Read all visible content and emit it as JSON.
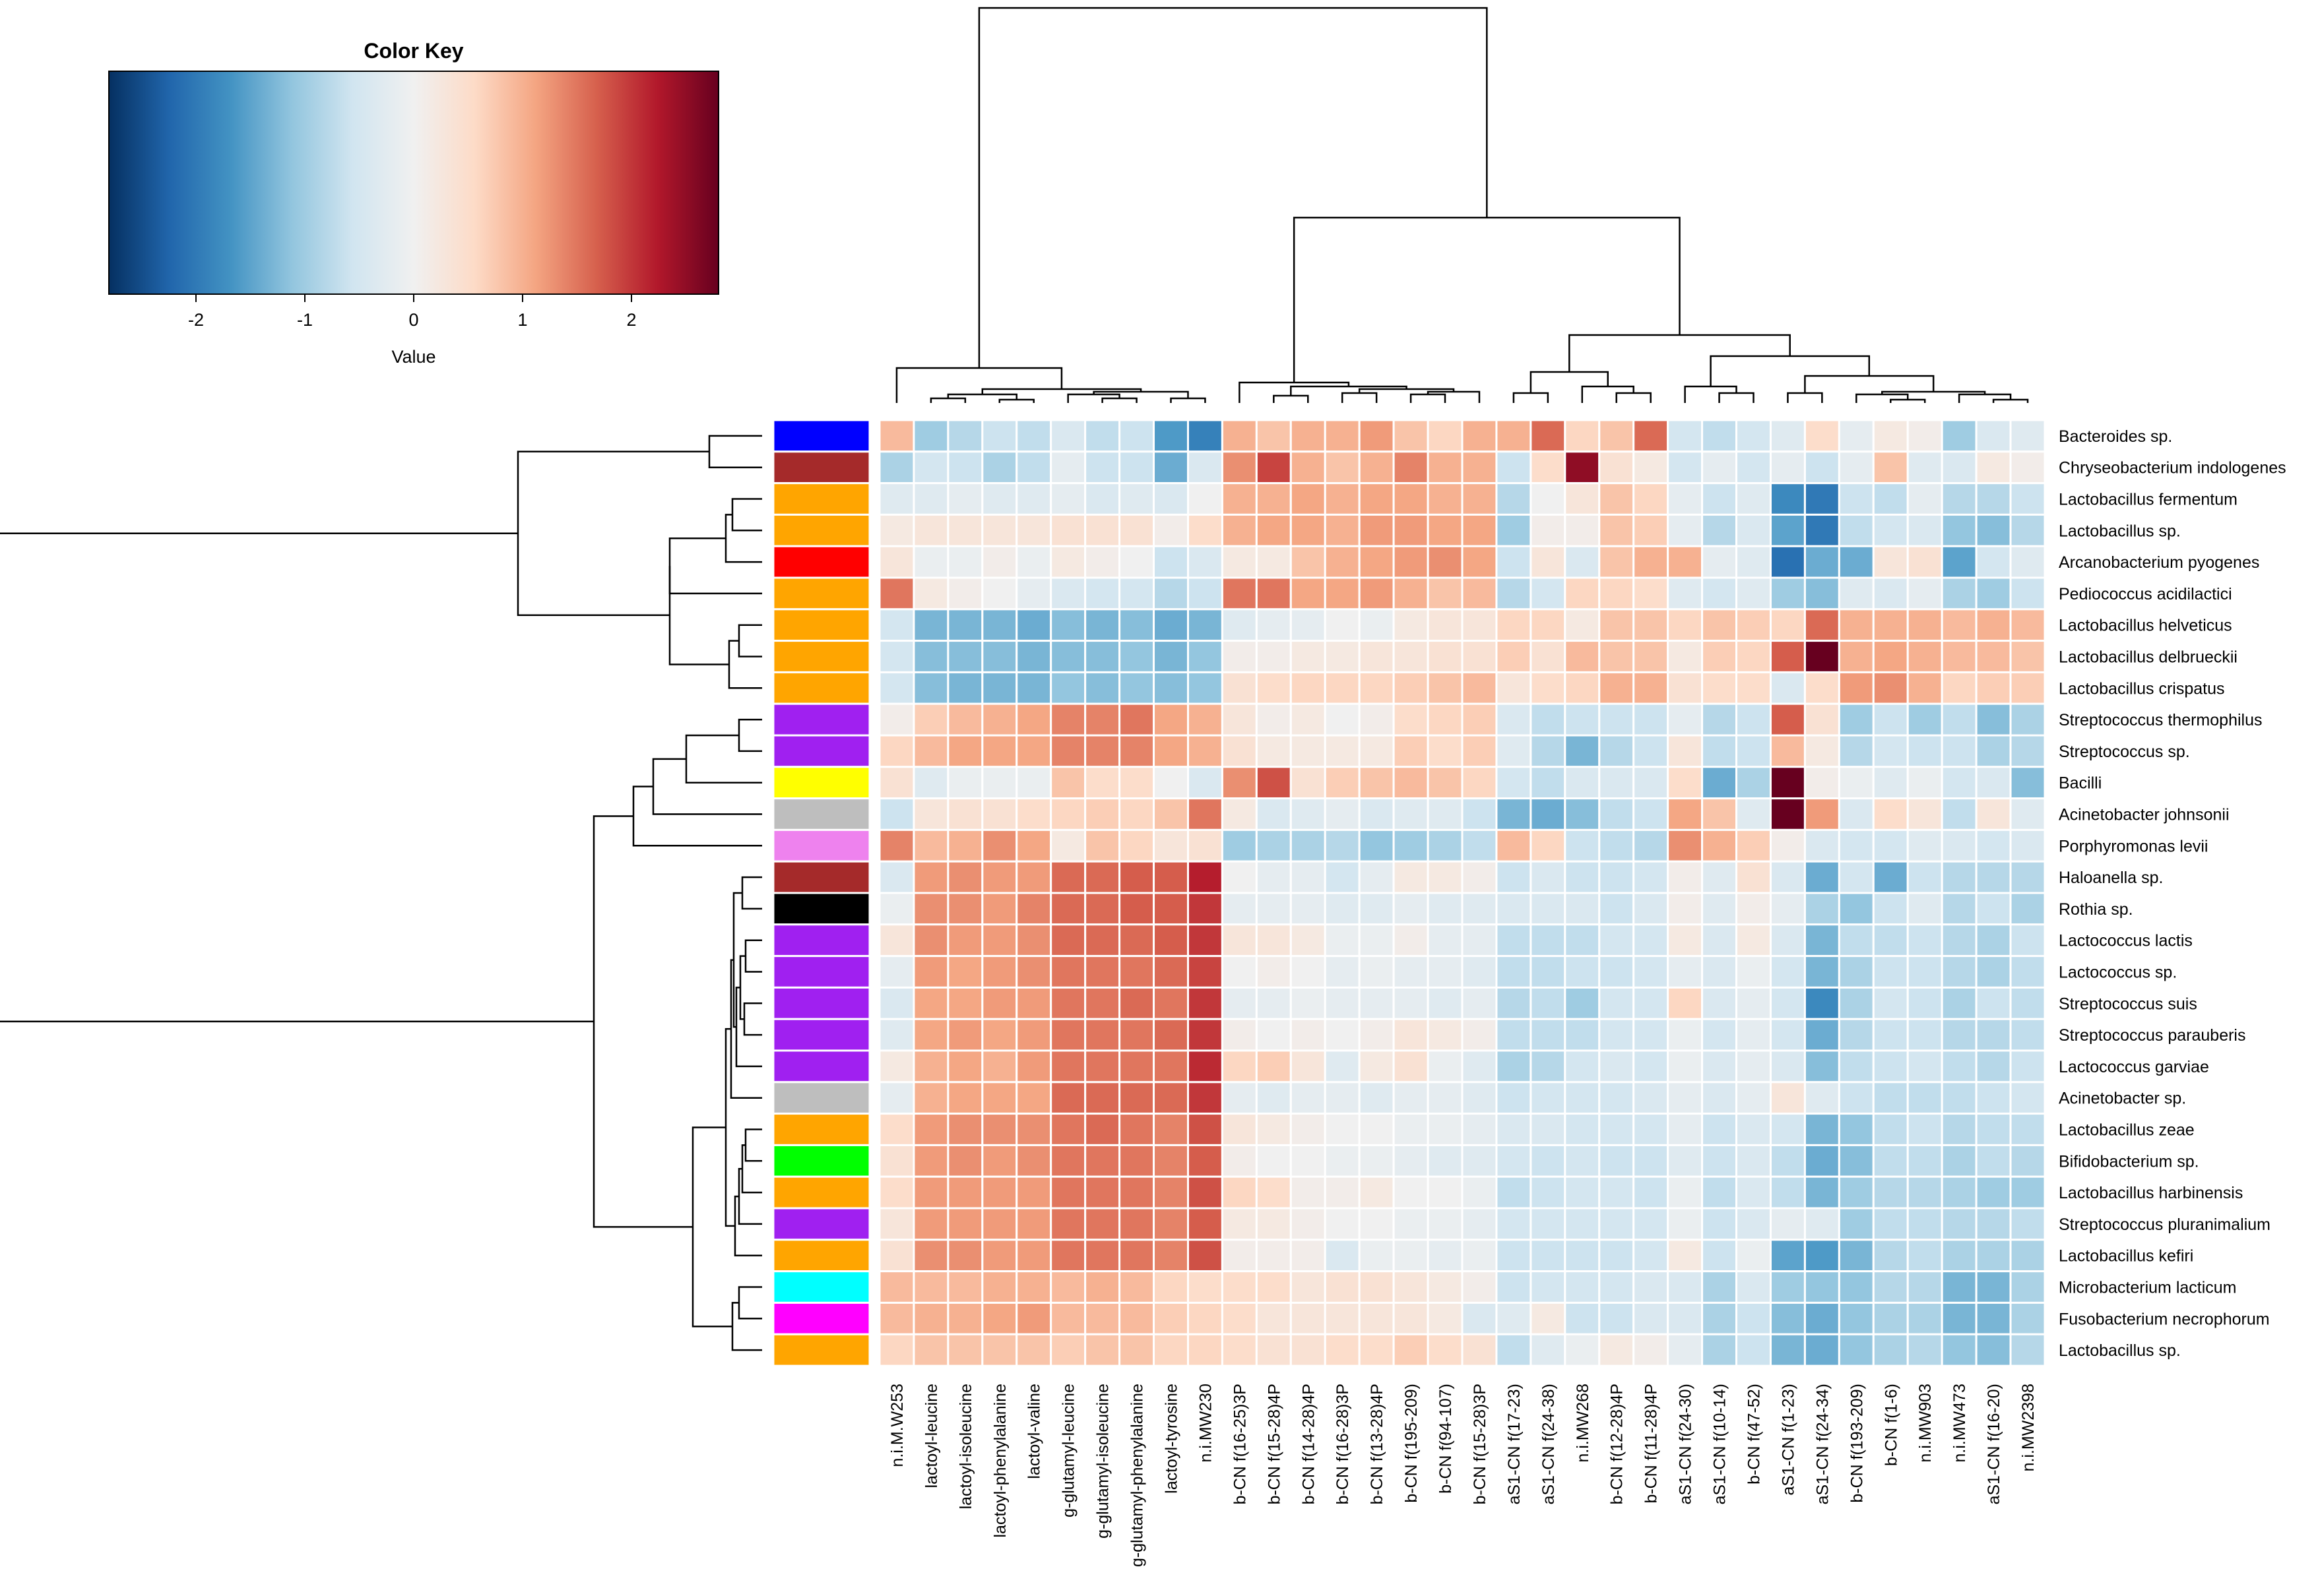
{
  "chart_data": {
    "type": "heatmap",
    "subtype": "clustered-heatmap-with-dendrograms",
    "color_key": {
      "title": "Color Key",
      "xlabel": "Value",
      "range": [
        -2.8,
        2.8
      ],
      "ticks": [
        -2,
        -1,
        0,
        1,
        2
      ],
      "tick_labels": [
        "-2",
        "-1",
        "0",
        "1",
        "2"
      ],
      "palette": [
        "#053061",
        "#2166ac",
        "#4393c3",
        "#92c5de",
        "#d1e5f0",
        "#f0f0f0",
        "#fddbc7",
        "#f4a582",
        "#d6604d",
        "#b2182b",
        "#67001f"
      ]
    },
    "columns": [
      "n.i.M.W253",
      "lactoyl-leucine",
      "lactoyl-isoleucine",
      "lactoyl-phenylalanine",
      "lactoyl-valine",
      "g-glutamyl-leucine",
      "g-glutamyl-isoleucine",
      "g-glutamyl-phenylalanine",
      "lactoyl-tyrosine",
      "n.i.MW230",
      "b-CN f(16-25)3P",
      "b-CN f(15-28)4P",
      "b-CN f(14-28)4P",
      "b-CN f(16-28)3P",
      "b-CN f(13-28)4P",
      "b-CN f(195-209)",
      "b-CN f(94-107)",
      "b-CN f(15-28)3P",
      "aS1-CN f(17-23)",
      "aS1-CN f(24-38)",
      "n.i.MW268",
      "b-CN f(12-28)4P",
      "b-CN f(11-28)4P",
      "aS1-CN f(24-30)",
      "aS1-CN f(10-14)",
      "b-CN f(47-52)",
      "aS1-CN f(1-23)",
      "aS1-CN f(24-34)",
      "b-CN f(193-209)",
      "b-CN f(1-6)",
      "n.i.MW903",
      "n.i.MW473",
      "aS1-CN f(16-20)",
      "n.i.MW2398"
    ],
    "rows": [
      "Bacteroides sp.",
      "Chryseobacterium indologenes",
      "Lactobacillus fermentum",
      "Lactobacillus sp.",
      "Arcanobacterium pyogenes",
      "Pediococcus acidilactici",
      "Lactobacillus helveticus",
      "Lactobacillus delbrueckii",
      "Lactobacillus crispatus",
      "Streptococcus thermophilus",
      "Streptococcus sp.",
      "Bacilli",
      "Acinetobacter johnsonii",
      "Porphyromonas levii",
      "Haloanella sp.",
      "Rothia sp.",
      "Lactococcus lactis",
      "Lactococcus sp.",
      "Streptococcus suis",
      "Streptococcus parauberis",
      "Lactococcus garviae",
      "Acinetobacter sp.",
      "Lactobacillus zeae",
      "Bifidobacterium sp.",
      "Lactobacillus harbinensis",
      "Streptococcus pluranimalium",
      "Lactobacillus kefiri",
      "Microbacterium lacticum",
      "Fusobacterium necrophorum",
      "Lactobacillus sp."
    ],
    "row_side_colors": [
      "#0000ff",
      "#a52a2a",
      "#ffa500",
      "#ffa500",
      "#ff0000",
      "#ffa500",
      "#ffa500",
      "#ffa500",
      "#ffa500",
      "#a020f0",
      "#a020f0",
      "#ffff00",
      "#bebebe",
      "#ee82ee",
      "#a52a2a",
      "#000000",
      "#a020f0",
      "#a020f0",
      "#a020f0",
      "#a020f0",
      "#a020f0",
      "#bebebe",
      "#ffa500",
      "#00ff00",
      "#ffa500",
      "#a020f0",
      "#ffa500",
      "#00ffff",
      "#ff00ff",
      "#ffa500"
    ],
    "values": [
      [
        0.9,
        -1.0,
        -0.8,
        -0.6,
        -0.7,
        -0.4,
        -0.7,
        -0.6,
        -1.6,
        -1.9,
        1.0,
        0.8,
        1.0,
        1.0,
        1.2,
        0.8,
        0.6,
        1.0,
        1.0,
        1.6,
        0.6,
        0.8,
        1.6,
        -0.5,
        -0.7,
        -0.5,
        -0.3,
        0.5,
        -0.2,
        0.2,
        0.1,
        -1.0,
        -0.4,
        -0.3
      ],
      [
        -0.9,
        -0.5,
        -0.6,
        -0.9,
        -0.7,
        -0.2,
        -0.6,
        -0.6,
        -1.4,
        -0.4,
        1.3,
        1.9,
        1.0,
        0.8,
        1.0,
        1.4,
        1.0,
        1.0,
        -0.6,
        0.5,
        2.5,
        0.4,
        0.2,
        -0.5,
        -0.2,
        -0.5,
        -0.2,
        -0.6,
        -0.2,
        0.8,
        -0.3,
        -0.4,
        0.2,
        0.1
      ],
      [
        -0.3,
        -0.3,
        -0.2,
        -0.3,
        -0.3,
        -0.2,
        -0.4,
        -0.3,
        -0.4,
        0.0,
        1.0,
        1.0,
        1.1,
        1.0,
        1.1,
        1.1,
        1.0,
        1.0,
        -0.8,
        0.0,
        0.3,
        0.8,
        0.6,
        -0.2,
        -0.6,
        -0.3,
        -1.8,
        -2.0,
        -0.6,
        -0.7,
        -0.2,
        -0.8,
        -0.8,
        -0.6
      ],
      [
        0.2,
        0.3,
        0.3,
        0.3,
        0.3,
        0.4,
        0.4,
        0.4,
        0.1,
        0.5,
        1.0,
        1.1,
        1.1,
        1.0,
        1.2,
        1.2,
        1.1,
        1.1,
        -1.0,
        0.1,
        0.1,
        0.8,
        0.7,
        -0.2,
        -0.8,
        -0.4,
        -1.5,
        -2.0,
        -0.7,
        -0.5,
        -0.4,
        -1.1,
        -1.2,
        -0.8
      ],
      [
        0.3,
        -0.1,
        -0.1,
        0.1,
        -0.1,
        0.2,
        0.1,
        0.0,
        -0.6,
        -0.4,
        0.2,
        0.2,
        0.8,
        1.0,
        1.1,
        1.2,
        1.3,
        1.1,
        -0.6,
        0.3,
        -0.4,
        0.8,
        1.0,
        1.0,
        -0.2,
        -0.3,
        -2.1,
        -1.4,
        -1.4,
        0.3,
        0.4,
        -1.5,
        -0.5,
        -0.3
      ],
      [
        1.5,
        0.2,
        0.1,
        0.0,
        -0.2,
        -0.4,
        -0.5,
        -0.5,
        -0.8,
        -0.6,
        1.5,
        1.5,
        1.1,
        1.1,
        1.2,
        1.0,
        0.8,
        0.9,
        -0.8,
        -0.5,
        0.6,
        0.6,
        0.5,
        -0.3,
        -0.5,
        -0.3,
        -1.0,
        -1.2,
        -0.3,
        -0.4,
        -0.2,
        -0.9,
        -1.0,
        -0.6
      ],
      [
        -0.5,
        -1.3,
        -1.3,
        -1.3,
        -1.4,
        -1.2,
        -1.3,
        -1.2,
        -1.4,
        -1.3,
        -0.3,
        -0.2,
        -0.2,
        0.0,
        -0.1,
        0.2,
        0.3,
        0.3,
        0.6,
        0.6,
        0.2,
        0.8,
        0.8,
        0.6,
        0.8,
        0.7,
        0.6,
        1.6,
        1.0,
        1.0,
        1.0,
        0.9,
        1.0,
        0.9
      ],
      [
        -0.5,
        -1.2,
        -1.2,
        -1.2,
        -1.3,
        -1.2,
        -1.2,
        -1.1,
        -1.3,
        -1.1,
        0.1,
        0.1,
        0.2,
        0.2,
        0.3,
        0.3,
        0.4,
        0.4,
        0.7,
        0.4,
        0.9,
        0.8,
        0.8,
        0.2,
        0.7,
        0.6,
        1.7,
        2.8,
        1.0,
        1.1,
        1.0,
        0.9,
        0.9,
        0.8
      ],
      [
        -0.5,
        -1.2,
        -1.3,
        -1.3,
        -1.3,
        -1.1,
        -1.2,
        -1.1,
        -1.2,
        -1.1,
        0.4,
        0.5,
        0.6,
        0.6,
        0.6,
        0.7,
        0.8,
        0.9,
        0.3,
        0.5,
        0.6,
        1.0,
        1.0,
        0.4,
        0.5,
        0.5,
        -0.4,
        0.5,
        1.2,
        1.3,
        1.0,
        0.6,
        0.7,
        0.7
      ],
      [
        0.1,
        0.7,
        0.9,
        1.0,
        1.1,
        1.4,
        1.4,
        1.5,
        1.1,
        1.0,
        0.3,
        0.1,
        0.2,
        0.0,
        0.1,
        0.5,
        0.6,
        0.7,
        -0.4,
        -0.7,
        -0.6,
        -0.6,
        -0.6,
        -0.2,
        -0.8,
        -0.6,
        1.7,
        0.4,
        -1.0,
        -0.6,
        -1.0,
        -0.7,
        -1.2,
        -0.9
      ],
      [
        0.6,
        0.9,
        1.1,
        1.1,
        1.1,
        1.4,
        1.4,
        1.4,
        1.1,
        1.0,
        0.4,
        0.2,
        0.2,
        0.2,
        0.2,
        0.7,
        0.5,
        0.7,
        -0.3,
        -0.8,
        -1.3,
        -0.8,
        -0.6,
        0.3,
        -0.7,
        -0.6,
        0.9,
        0.2,
        -0.8,
        -0.5,
        -0.6,
        -0.6,
        -0.9,
        -0.8
      ],
      [
        0.4,
        -0.3,
        -0.1,
        -0.1,
        -0.1,
        0.8,
        0.5,
        0.5,
        0.0,
        -0.4,
        1.3,
        1.8,
        0.4,
        0.7,
        0.8,
        0.9,
        0.8,
        0.6,
        -0.5,
        -0.7,
        -0.4,
        -0.4,
        -0.4,
        0.5,
        -1.4,
        -0.9,
        2.8,
        0.1,
        -0.1,
        -0.3,
        -0.1,
        -0.5,
        -0.4,
        -1.2
      ],
      [
        -0.6,
        0.3,
        0.4,
        0.4,
        0.5,
        0.6,
        0.7,
        0.6,
        0.8,
        1.5,
        0.2,
        -0.4,
        -0.3,
        -0.2,
        -0.4,
        -0.3,
        -0.3,
        -0.6,
        -1.3,
        -1.4,
        -1.2,
        -0.7,
        -0.6,
        1.1,
        0.8,
        -0.3,
        2.8,
        1.2,
        -0.4,
        0.5,
        0.3,
        -0.7,
        0.3,
        -0.3
      ],
      [
        1.4,
        0.9,
        1.0,
        1.3,
        1.1,
        0.2,
        0.8,
        0.6,
        0.3,
        0.4,
        -1.0,
        -0.9,
        -0.9,
        -0.8,
        -1.1,
        -1.0,
        -0.9,
        -0.7,
        0.9,
        0.6,
        -0.6,
        -0.7,
        -0.8,
        1.3,
        1.0,
        0.7,
        0.1,
        -0.4,
        -0.5,
        -0.5,
        -0.3,
        -0.4,
        -0.5,
        -0.4
      ],
      [
        -0.4,
        1.2,
        1.3,
        1.2,
        1.2,
        1.6,
        1.6,
        1.7,
        1.7,
        2.2,
        0.0,
        -0.2,
        -0.2,
        -0.5,
        -0.2,
        0.2,
        0.2,
        0.1,
        -0.6,
        -0.4,
        -0.6,
        -0.6,
        -0.5,
        0.1,
        -0.3,
        0.4,
        -0.4,
        -1.4,
        -0.5,
        -1.4,
        -0.6,
        -0.8,
        -0.8,
        -0.8
      ],
      [
        -0.1,
        1.3,
        1.3,
        1.2,
        1.4,
        1.6,
        1.6,
        1.7,
        1.7,
        2.0,
        -0.2,
        -0.2,
        -0.2,
        -0.3,
        -0.3,
        -0.2,
        -0.3,
        -0.3,
        -0.4,
        -0.4,
        -0.4,
        -0.6,
        -0.4,
        0.1,
        -0.3,
        0.1,
        -0.2,
        -0.9,
        -1.1,
        -0.6,
        -0.3,
        -0.8,
        -0.6,
        -0.9
      ],
      [
        0.3,
        1.3,
        1.2,
        1.2,
        1.3,
        1.6,
        1.6,
        1.6,
        1.7,
        2.0,
        0.3,
        0.3,
        0.2,
        -0.1,
        -0.1,
        0.1,
        -0.2,
        -0.2,
        -0.7,
        -0.7,
        -0.7,
        -0.5,
        -0.5,
        0.2,
        -0.4,
        0.2,
        -0.4,
        -1.3,
        -0.7,
        -0.7,
        -0.6,
        -0.8,
        -0.9,
        -0.6
      ],
      [
        -0.2,
        1.2,
        1.1,
        1.2,
        1.3,
        1.5,
        1.5,
        1.5,
        1.6,
        1.9,
        0.0,
        0.1,
        0.0,
        -0.2,
        -0.1,
        -0.2,
        -0.2,
        -0.3,
        -0.7,
        -0.7,
        -0.6,
        -0.6,
        -0.5,
        -0.2,
        -0.4,
        -0.1,
        -0.5,
        -1.3,
        -0.9,
        -0.6,
        -0.6,
        -0.8,
        -0.9,
        -0.7
      ],
      [
        -0.4,
        1.1,
        1.1,
        1.2,
        1.2,
        1.5,
        1.5,
        1.6,
        1.5,
        2.0,
        -0.2,
        -0.2,
        -0.1,
        -0.2,
        -0.2,
        -0.2,
        -0.3,
        -0.2,
        -0.8,
        -0.7,
        -1.0,
        -0.5,
        -0.5,
        0.6,
        -0.4,
        -0.2,
        -0.5,
        -1.8,
        -0.9,
        -0.5,
        -0.6,
        -0.9,
        -0.6,
        -0.7
      ],
      [
        -0.3,
        1.1,
        1.2,
        1.1,
        1.2,
        1.5,
        1.5,
        1.5,
        1.6,
        2.0,
        0.1,
        0.0,
        0.1,
        0.0,
        0.1,
        0.3,
        0.2,
        0.1,
        -0.7,
        -0.7,
        -0.7,
        -0.5,
        -0.5,
        -0.1,
        -0.5,
        -0.2,
        -0.5,
        -1.4,
        -0.8,
        -0.6,
        -0.6,
        -0.8,
        -0.8,
        -0.7
      ],
      [
        0.2,
        1.0,
        1.1,
        1.0,
        1.2,
        1.5,
        1.5,
        1.5,
        1.5,
        2.1,
        0.6,
        0.7,
        0.3,
        -0.3,
        0.2,
        0.4,
        -0.1,
        -0.3,
        -0.9,
        -0.8,
        -0.5,
        -0.4,
        -0.5,
        -0.1,
        -0.4,
        -0.2,
        -0.4,
        -1.2,
        -0.7,
        -0.6,
        -0.5,
        -0.7,
        -0.8,
        -0.6
      ],
      [
        -0.2,
        1.0,
        1.1,
        1.1,
        1.1,
        1.6,
        1.6,
        1.6,
        1.6,
        2.0,
        -0.2,
        -0.3,
        -0.2,
        -0.2,
        -0.3,
        -0.2,
        -0.2,
        -0.3,
        -0.6,
        -0.5,
        -0.5,
        -0.5,
        -0.4,
        -0.2,
        -0.4,
        -0.2,
        0.3,
        -0.3,
        -0.6,
        -0.7,
        -0.7,
        -0.7,
        -0.6,
        -0.5
      ],
      [
        0.5,
        1.2,
        1.3,
        1.3,
        1.3,
        1.5,
        1.6,
        1.5,
        1.4,
        1.8,
        0.3,
        0.2,
        0.1,
        0.0,
        0.0,
        -0.1,
        -0.1,
        -0.2,
        -0.4,
        -0.4,
        -0.5,
        -0.5,
        -0.5,
        -0.2,
        -0.6,
        -0.4,
        -0.5,
        -1.3,
        -1.1,
        -0.7,
        -0.6,
        -0.8,
        -0.7,
        -0.7
      ],
      [
        0.4,
        1.2,
        1.3,
        1.2,
        1.3,
        1.5,
        1.5,
        1.5,
        1.4,
        1.7,
        0.1,
        0.0,
        0.0,
        -0.1,
        -0.1,
        -0.2,
        -0.3,
        -0.3,
        -0.5,
        -0.6,
        -0.5,
        -0.6,
        -0.6,
        -0.3,
        -0.6,
        -0.4,
        -0.7,
        -1.4,
        -1.2,
        -0.7,
        -0.7,
        -0.9,
        -0.7,
        -0.8
      ],
      [
        0.5,
        1.2,
        1.2,
        1.2,
        1.2,
        1.5,
        1.5,
        1.5,
        1.4,
        1.8,
        0.6,
        0.5,
        0.1,
        0.1,
        0.2,
        0.0,
        0.0,
        -0.1,
        -0.7,
        -0.6,
        -0.5,
        -0.5,
        -0.6,
        -0.1,
        -0.7,
        -0.4,
        -0.7,
        -1.3,
        -1.0,
        -0.8,
        -0.8,
        -0.9,
        -1.0,
        -1.0
      ],
      [
        0.3,
        1.2,
        1.2,
        1.2,
        1.2,
        1.5,
        1.5,
        1.5,
        1.4,
        1.7,
        0.2,
        0.2,
        0.1,
        0.0,
        0.0,
        -0.1,
        -0.1,
        -0.2,
        -0.5,
        -0.5,
        -0.5,
        -0.5,
        -0.5,
        -0.1,
        -0.6,
        -0.4,
        -0.2,
        -0.3,
        -1.0,
        -0.7,
        -0.7,
        -0.8,
        -0.8,
        -0.7
      ],
      [
        0.4,
        1.3,
        1.3,
        1.2,
        1.2,
        1.5,
        1.5,
        1.5,
        1.4,
        1.8,
        0.1,
        0.1,
        0.1,
        -0.4,
        -0.1,
        -0.1,
        -0.2,
        -0.1,
        -0.6,
        -0.6,
        -0.6,
        -0.6,
        -0.5,
        0.2,
        -0.6,
        -0.1,
        -1.5,
        -1.6,
        -1.3,
        -0.8,
        -0.7,
        -0.9,
        -0.9,
        -0.9
      ],
      [
        0.9,
        0.9,
        0.9,
        1.0,
        1.0,
        0.9,
        1.0,
        0.9,
        0.6,
        0.5,
        0.5,
        0.5,
        0.3,
        0.4,
        0.4,
        0.3,
        0.2,
        0.1,
        -0.6,
        -0.5,
        -0.5,
        -0.5,
        -0.4,
        -0.4,
        -0.9,
        -0.4,
        -1.0,
        -1.1,
        -1.1,
        -0.8,
        -0.8,
        -1.3,
        -1.3,
        -0.9
      ],
      [
        0.9,
        1.0,
        1.0,
        1.1,
        1.2,
        0.9,
        0.9,
        0.9,
        0.7,
        0.6,
        0.5,
        0.3,
        0.3,
        0.3,
        0.3,
        0.3,
        0.2,
        -0.4,
        -0.3,
        0.2,
        -0.6,
        -0.6,
        -0.4,
        -0.4,
        -0.9,
        -0.6,
        -1.2,
        -1.4,
        -1.1,
        -0.9,
        -0.9,
        -1.3,
        -1.3,
        -0.9
      ],
      [
        0.6,
        0.8,
        0.8,
        0.8,
        0.8,
        0.7,
        0.8,
        0.8,
        0.6,
        0.6,
        0.5,
        0.4,
        0.4,
        0.5,
        0.5,
        0.7,
        0.5,
        0.4,
        -0.7,
        -0.3,
        -0.1,
        0.2,
        0.1,
        -0.2,
        -0.9,
        -0.6,
        -1.3,
        -1.4,
        -1.1,
        -0.9,
        -0.8,
        -1.1,
        -1.2,
        -0.8
      ]
    ],
    "col_order_note": "columns listed left-to-right as displayed; rows listed top-to-bottom as displayed",
    "dendrograms": {
      "rows": true,
      "columns": true
    }
  }
}
